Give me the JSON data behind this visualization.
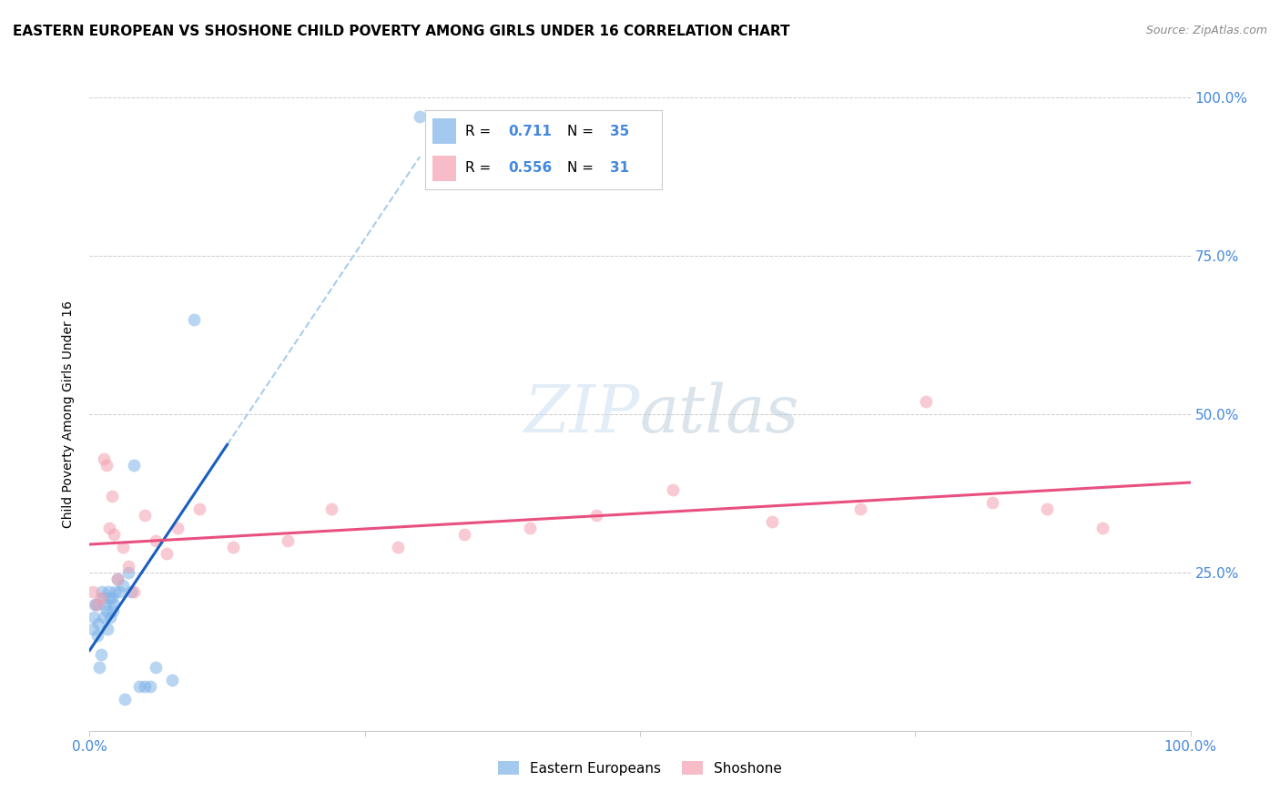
{
  "title": "EASTERN EUROPEAN VS SHOSHONE CHILD POVERTY AMONG GIRLS UNDER 16 CORRELATION CHART",
  "source": "Source: ZipAtlas.com",
  "ylabel": "Child Poverty Among Girls Under 16",
  "xlim": [
    0,
    1
  ],
  "ylim": [
    0,
    1
  ],
  "blue_color": "#7EB3E8",
  "pink_color": "#F4A0B0",
  "blue_line_color": "#1A5FBF",
  "pink_line_color": "#E85080",
  "dashed_color": "#AACCEE",
  "legend_r_blue": "0.711",
  "legend_n_blue": "35",
  "legend_r_pink": "0.556",
  "legend_n_pink": "31",
  "watermark": "ZIPatlas",
  "eastern_european_x": [
    0.003,
    0.004,
    0.005,
    0.006,
    0.007,
    0.008,
    0.009,
    0.01,
    0.011,
    0.012,
    0.013,
    0.014,
    0.015,
    0.016,
    0.017,
    0.018,
    0.019,
    0.02,
    0.021,
    0.022,
    0.023,
    0.025,
    0.027,
    0.03,
    0.032,
    0.035,
    0.038,
    0.04,
    0.045,
    0.05,
    0.055,
    0.06,
    0.075,
    0.095,
    0.3
  ],
  "eastern_european_y": [
    0.16,
    0.18,
    0.2,
    0.2,
    0.15,
    0.17,
    0.1,
    0.12,
    0.22,
    0.21,
    0.18,
    0.2,
    0.19,
    0.16,
    0.22,
    0.21,
    0.18,
    0.21,
    0.19,
    0.2,
    0.22,
    0.24,
    0.22,
    0.23,
    0.05,
    0.25,
    0.22,
    0.42,
    0.07,
    0.07,
    0.07,
    0.1,
    0.08,
    0.65,
    0.97
  ],
  "shoshone_x": [
    0.003,
    0.006,
    0.01,
    0.013,
    0.015,
    0.018,
    0.02,
    0.022,
    0.025,
    0.03,
    0.035,
    0.04,
    0.05,
    0.06,
    0.07,
    0.08,
    0.1,
    0.13,
    0.18,
    0.22,
    0.28,
    0.34,
    0.4,
    0.46,
    0.53,
    0.62,
    0.7,
    0.76,
    0.82,
    0.87,
    0.92
  ],
  "shoshone_y": [
    0.22,
    0.2,
    0.21,
    0.43,
    0.42,
    0.32,
    0.37,
    0.31,
    0.24,
    0.29,
    0.26,
    0.22,
    0.34,
    0.3,
    0.28,
    0.32,
    0.35,
    0.29,
    0.3,
    0.35,
    0.29,
    0.31,
    0.32,
    0.34,
    0.38,
    0.33,
    0.35,
    0.52,
    0.36,
    0.35,
    0.32
  ],
  "background_color": "#FFFFFF",
  "grid_color": "#CCCCCC",
  "tick_color_blue": "#4488DD",
  "scatter_size": 100,
  "scatter_alpha": 0.55
}
